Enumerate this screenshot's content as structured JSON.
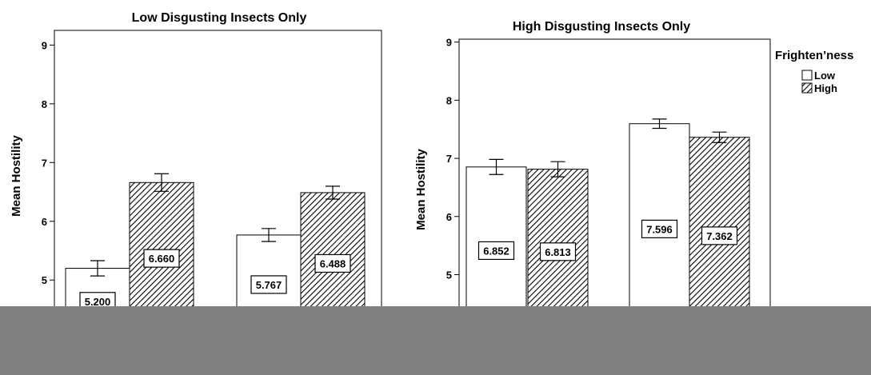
{
  "chart_data": [
    {
      "type": "bar",
      "title": "Low Disgusting Insects Only",
      "ylabel": "Mean Hostility",
      "xlabel": "",
      "ylim": [
        4.35,
        9.25
      ],
      "yticks": [
        5,
        6,
        7,
        8,
        9
      ],
      "series": [
        {
          "name": "Low",
          "values": [
            5.2,
            5.767
          ],
          "labels": [
            "5.200",
            "5.767"
          ],
          "err": [
            0.13,
            0.11
          ]
        },
        {
          "name": "High",
          "values": [
            6.66,
            6.488
          ],
          "labels": [
            "6.660",
            "6.488"
          ],
          "err": [
            0.15,
            0.11
          ]
        }
      ]
    },
    {
      "type": "bar",
      "title": "High Disgusting Insects Only",
      "ylabel": "Mean Hostility",
      "xlabel": "",
      "ylim": [
        4.25,
        9.05
      ],
      "yticks": [
        5,
        6,
        7,
        8,
        9
      ],
      "series": [
        {
          "name": "Low",
          "values": [
            6.852,
            7.596
          ],
          "labels": [
            "6.852",
            "7.596"
          ],
          "err": [
            0.13,
            0.08
          ]
        },
        {
          "name": "High",
          "values": [
            6.813,
            7.362
          ],
          "labels": [
            "6.813",
            "7.362"
          ],
          "err": [
            0.13,
            0.09
          ]
        }
      ]
    }
  ],
  "legend": {
    "title": "Frighten’ness",
    "items": [
      {
        "label": "Low",
        "pattern": "none"
      },
      {
        "label": "High",
        "pattern": "hatch"
      }
    ]
  },
  "colors": {
    "bar_fill": "#ffffff",
    "hatch": "#000000",
    "occluder": "#808080"
  }
}
